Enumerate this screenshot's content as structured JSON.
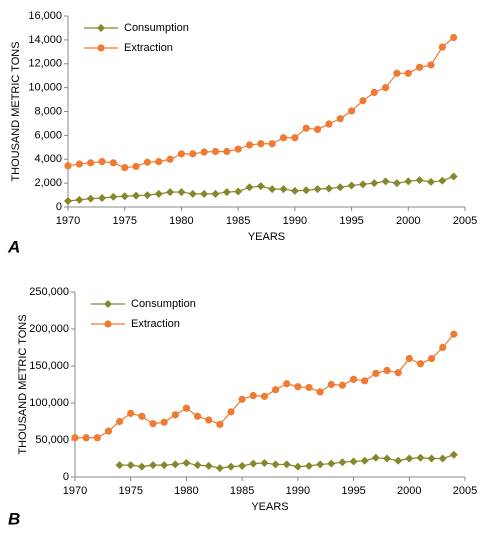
{
  "chart_data": [
    {
      "type": "line",
      "panel_label": "A",
      "x_label": "YEARS",
      "y_label": "THOUSAND METRIC TONS",
      "x": [
        1970,
        1971,
        1972,
        1973,
        1974,
        1975,
        1976,
        1977,
        1978,
        1979,
        1980,
        1981,
        1982,
        1983,
        1984,
        1985,
        1986,
        1987,
        1988,
        1989,
        1990,
        1991,
        1992,
        1993,
        1994,
        1995,
        1996,
        1997,
        1998,
        1999,
        2000,
        2001,
        2002,
        2003,
        2004
      ],
      "series": [
        {
          "name": "Consumption",
          "color": "#86862a",
          "marker": "diamond",
          "values": [
            500,
            600,
            700,
            750,
            850,
            900,
            950,
            1000,
            1100,
            1250,
            1250,
            1100,
            1100,
            1100,
            1250,
            1300,
            1650,
            1750,
            1500,
            1500,
            1350,
            1400,
            1500,
            1550,
            1650,
            1800,
            1900,
            2000,
            2150,
            2000,
            2150,
            2250,
            2100,
            2200,
            2550
          ]
        },
        {
          "name": "Extraction",
          "color": "#f07a32",
          "marker": "circle",
          "values": [
            3450,
            3600,
            3700,
            3800,
            3700,
            3300,
            3400,
            3750,
            3800,
            4000,
            4450,
            4450,
            4600,
            4650,
            4650,
            4850,
            5200,
            5300,
            5300,
            5800,
            5800,
            6600,
            6500,
            6950,
            7400,
            8050,
            8900,
            9600,
            10000,
            11200,
            11200,
            11700,
            11900,
            13400,
            14200
          ]
        }
      ],
      "xlim": [
        1970,
        2005
      ],
      "xticks": [
        1970,
        1975,
        1980,
        1985,
        1990,
        1995,
        2000,
        2005
      ],
      "ylim": [
        0,
        16000
      ],
      "yticks": [
        0,
        {
          "value": 2000,
          "label": "2,000"
        },
        {
          "value": 4000,
          "label": "4,000"
        },
        {
          "value": 6000,
          "label": "6,000"
        },
        {
          "value": 8000,
          "label": "8,000"
        },
        {
          "value": 10000,
          "label": "10,000"
        },
        {
          "value": 12000,
          "label": "12,000"
        },
        {
          "value": 14000,
          "label": "14,000"
        },
        {
          "value": 16000,
          "label": "16,000"
        }
      ],
      "legend": "top-left"
    },
    {
      "type": "line",
      "panel_label": "B",
      "x_label": "YEARS",
      "y_label": "THOUSAND METRIC TONS",
      "x": [
        1970,
        1971,
        1972,
        1973,
        1974,
        1975,
        1976,
        1977,
        1978,
        1979,
        1980,
        1981,
        1982,
        1983,
        1984,
        1985,
        1986,
        1987,
        1988,
        1989,
        1990,
        1991,
        1992,
        1993,
        1994,
        1995,
        1996,
        1997,
        1998,
        1999,
        2000,
        2001,
        2002,
        2003,
        2004
      ],
      "series": [
        {
          "name": "Consumption",
          "color": "#86862a",
          "marker": "diamond",
          "values": [
            null,
            null,
            null,
            null,
            16000,
            16000,
            14000,
            16000,
            16000,
            17000,
            19000,
            16000,
            15000,
            12000,
            14000,
            15000,
            18000,
            19000,
            17000,
            17000,
            14000,
            15000,
            17000,
            18000,
            20000,
            21000,
            22000,
            26000,
            25000,
            22000,
            25000,
            26000,
            25000,
            25000,
            30000
          ]
        },
        {
          "name": "Extraction",
          "color": "#f07a32",
          "marker": "circle",
          "values": [
            53000,
            53000,
            53000,
            62000,
            75000,
            86000,
            82000,
            72000,
            74000,
            84000,
            93000,
            82000,
            77000,
            71000,
            88000,
            105000,
            110000,
            109000,
            118000,
            126000,
            122000,
            121000,
            115000,
            125000,
            124000,
            132000,
            130000,
            140000,
            144000,
            141000,
            160000,
            153000,
            160000,
            175000,
            193000
          ]
        }
      ],
      "xlim": [
        1970,
        2005
      ],
      "xticks": [
        1970,
        1975,
        1980,
        1985,
        1990,
        1995,
        2000,
        2005
      ],
      "ylim": [
        0,
        250000
      ],
      "yticks": [
        0,
        {
          "value": 50000,
          "label": "50,000"
        },
        {
          "value": 100000,
          "label": "100,000"
        },
        {
          "value": 150000,
          "label": "150,000"
        },
        {
          "value": 200000,
          "label": "200,000"
        },
        {
          "value": 250000,
          "label": "250,000"
        }
      ],
      "legend": "top-left"
    }
  ]
}
